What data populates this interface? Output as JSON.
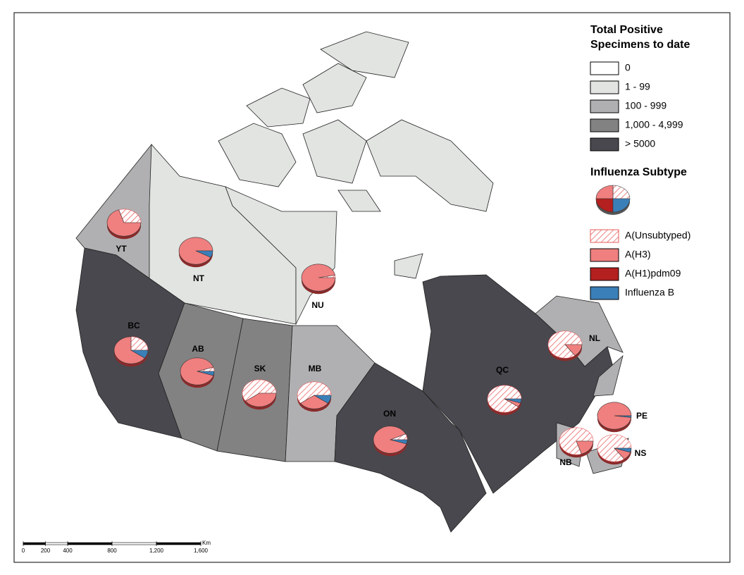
{
  "legend": {
    "title_lines": [
      "Total Positive",
      "Specimens to date"
    ],
    "classes": [
      {
        "label": "0",
        "color": "#ffffff"
      },
      {
        "label": "1 - 99",
        "color": "#e1e4e1"
      },
      {
        "label": "100 - 999",
        "color": "#b0b0b2"
      },
      {
        "label": "1,000 - 4,999",
        "color": "#828283"
      },
      {
        "label": "> 5000",
        "color": "#48484e"
      }
    ],
    "subtype_title": "Influenza Subtype",
    "subtypes": [
      {
        "name": "A(Unsubtyped)",
        "color": "#e8585a",
        "pattern": "hatch"
      },
      {
        "name": "A(H3)",
        "color": "#f07f7f"
      },
      {
        "name": "A(H1)pdm09",
        "color": "#b3201f"
      },
      {
        "name": "Influenza B",
        "color": "#3b7fb8"
      }
    ]
  },
  "provinces": [
    {
      "name": "YT",
      "color": "#b0b0b2",
      "values": [
        30,
        70,
        0,
        0
      ]
    },
    {
      "name": "NT",
      "color": "#e1e4e1",
      "values": [
        0,
        92,
        0,
        8
      ]
    },
    {
      "name": "NU",
      "color": "#e1e4e1",
      "values": [
        3,
        97,
        0,
        0
      ]
    },
    {
      "name": "BC",
      "color": "#48484e",
      "values": [
        25,
        65,
        0,
        10
      ]
    },
    {
      "name": "AB",
      "color": "#828283",
      "values": [
        5,
        90,
        0,
        5
      ]
    },
    {
      "name": "SK",
      "color": "#828283",
      "values": [
        60,
        40,
        0,
        0
      ]
    },
    {
      "name": "MB",
      "color": "#b0b0b2",
      "values": [
        60,
        30,
        0,
        10
      ]
    },
    {
      "name": "ON",
      "color": "#48484e",
      "values": [
        7,
        88,
        0,
        5
      ]
    },
    {
      "name": "QC",
      "color": "#48484e",
      "values": [
        90,
        5,
        0,
        5
      ]
    },
    {
      "name": "NL",
      "color": "#b0b0b2",
      "values": [
        85,
        15,
        0,
        0
      ]
    },
    {
      "name": "PE",
      "color": "#b0b0b2",
      "values": [
        0,
        98,
        0,
        2
      ]
    },
    {
      "name": "NB",
      "color": "#b0b0b2",
      "values": [
        80,
        20,
        0,
        0
      ]
    },
    {
      "name": "NS",
      "color": "#b0b0b2",
      "values": [
        85,
        10,
        0,
        5
      ]
    }
  ],
  "scale_bar": {
    "unit": "Km",
    "ticks": [
      0,
      200,
      400,
      800,
      {
        "value": 1200,
        "label": "1,200"
      },
      {
        "value": 1600,
        "label": "1,600"
      }
    ]
  }
}
